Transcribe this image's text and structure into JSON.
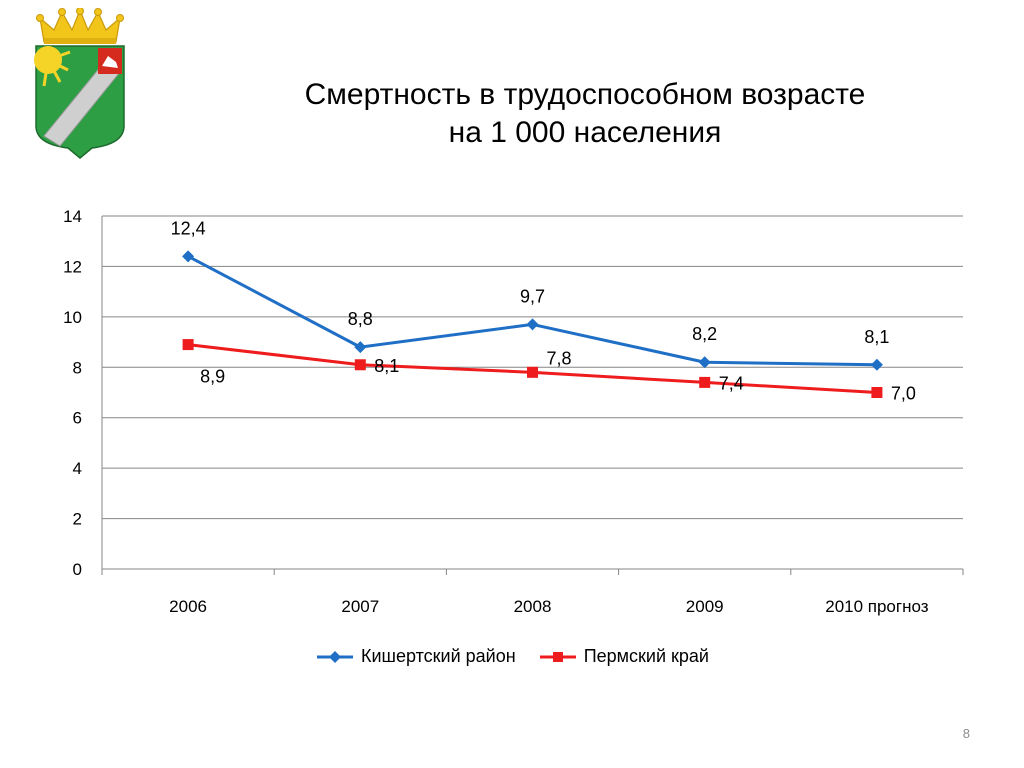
{
  "slide": {
    "title_line1": "Смертность в трудоспособном возрасте",
    "title_line2": "на 1 000 населения",
    "page_number": "8"
  },
  "colors": {
    "series1": "#1f6fc6",
    "series2": "#ee1c1c",
    "grid": "#868686"
  },
  "logo": {
    "name": "coat-of-arms",
    "colors": {
      "field": "#2e9e44",
      "crown": "#f2c51b",
      "sun": "#f5d327",
      "bend": "#c9c9c9",
      "canton": "#d52b1e"
    }
  },
  "chart_data": {
    "type": "line",
    "categories": [
      "2006",
      "2007",
      "2008",
      "2009",
      "2010 прогноз"
    ],
    "ylim": [
      0,
      14
    ],
    "yticks": [
      "0",
      "2",
      "4",
      "6",
      "8",
      "10",
      "12",
      "14"
    ],
    "grid": true,
    "legend_position": "bottom",
    "series": [
      {
        "name": "Кишертский район",
        "marker": "diamond",
        "values": [
          12.4,
          8.8,
          9.7,
          8.2,
          8.1
        ],
        "labels": [
          "12,4",
          "8,8",
          "9,7",
          "8,2",
          "8,1"
        ]
      },
      {
        "name": "Пермский край",
        "marker": "square",
        "values": [
          8.9,
          8.1,
          7.8,
          7.4,
          7.0
        ],
        "labels": [
          "8,9",
          "8,1",
          "7,8",
          "7,4",
          "7,0"
        ]
      }
    ]
  }
}
